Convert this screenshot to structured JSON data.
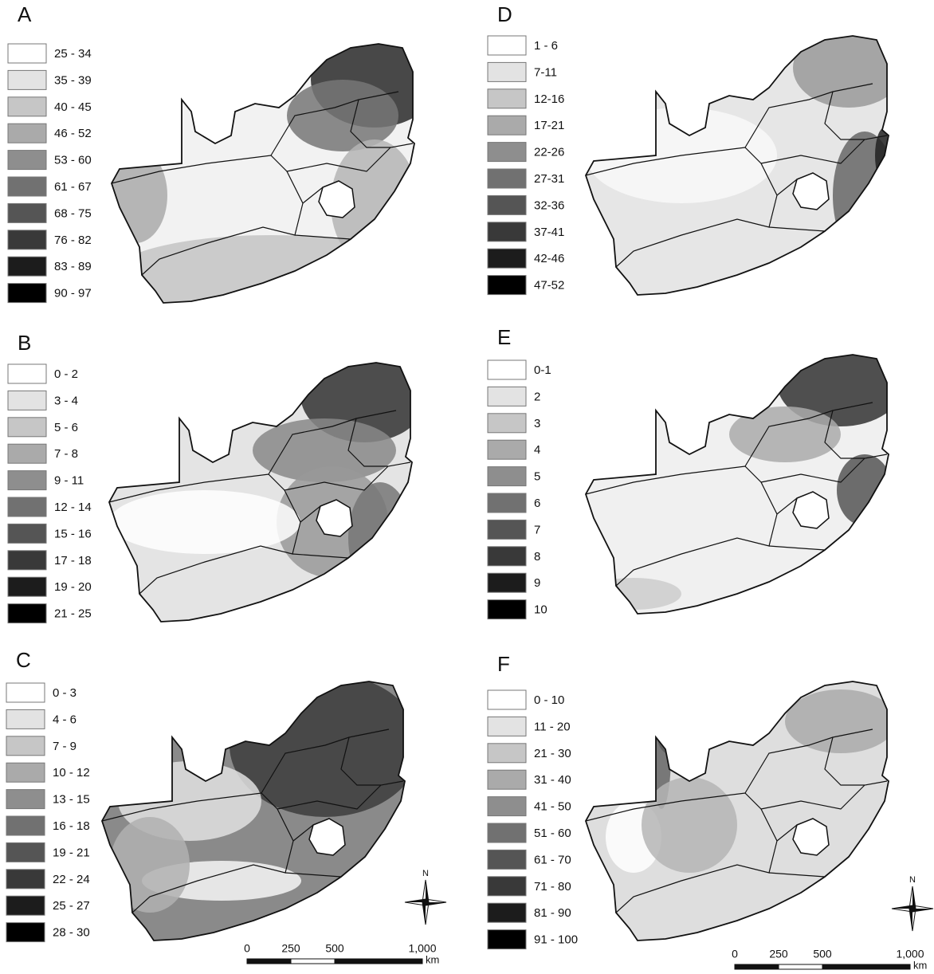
{
  "panels": [
    {
      "label": "A",
      "legend": [
        "25 - 34",
        "35 - 39",
        "40 - 45",
        "46 - 52",
        "53 - 60",
        "61 - 67",
        "68 - 75",
        "76 - 82",
        "83 - 89",
        "90 - 97"
      ]
    },
    {
      "label": "B",
      "legend": [
        "0 - 2",
        "3 - 4",
        "5 - 6",
        "7 - 8",
        "9 - 11",
        "12 - 14",
        "15 - 16",
        "17 - 18",
        "19 - 20",
        "21 - 25"
      ]
    },
    {
      "label": "C",
      "legend": [
        "0 - 3",
        "4 - 6",
        "7 - 9",
        "10 - 12",
        "13 - 15",
        "16 - 18",
        "19 - 21",
        "22 - 24",
        "25 - 27",
        "28 - 30"
      ]
    },
    {
      "label": "D",
      "legend": [
        "1 - 6",
        "7-11",
        "12-16",
        "17-21",
        "22-26",
        "27-31",
        "32-36",
        "37-41",
        "42-46",
        "47-52"
      ]
    },
    {
      "label": "E",
      "legend": [
        "0-1",
        "2",
        "3",
        "4",
        "5",
        "6",
        "7",
        "8",
        "9",
        "10"
      ]
    },
    {
      "label": "F",
      "legend": [
        "0 - 10",
        "11 - 20",
        "21 - 30",
        "31 - 40",
        "41 - 50",
        "51 - 60",
        "61 - 70",
        "71 - 80",
        "81 - 90",
        "91 - 100"
      ]
    }
  ],
  "scale_bars": [
    {
      "ticks": [
        "0",
        "250",
        "500",
        "1,000"
      ],
      "unit": "km"
    },
    {
      "ticks": [
        "0",
        "250",
        "500",
        "1,000"
      ],
      "unit": "km"
    }
  ],
  "north_arrows": [
    {
      "label": "N"
    },
    {
      "label": "N"
    }
  ]
}
